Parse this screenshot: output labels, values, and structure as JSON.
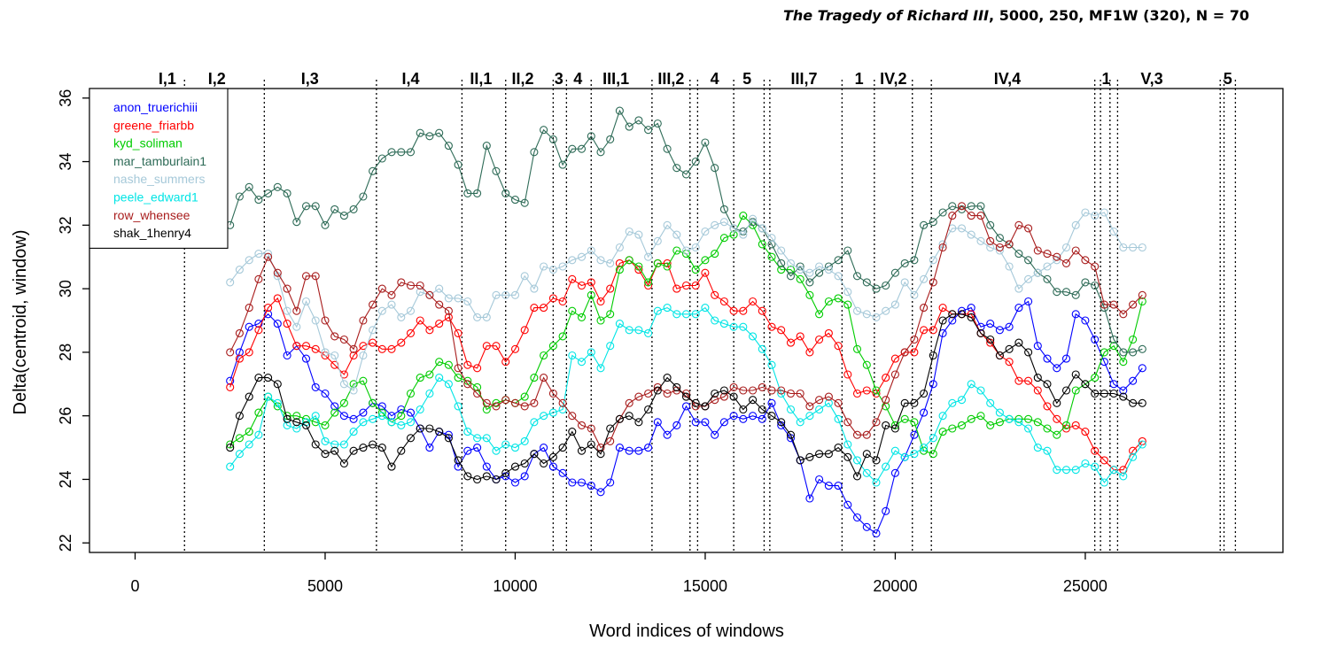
{
  "title": {
    "italic": "The Tragedy of Richard III",
    "rest": ", 5000, 250, MF1W (320), N = 70"
  },
  "chart_data": {
    "type": "line",
    "xlabel": "Word indices of windows",
    "ylabel": "Delta(centroid, window)",
    "xlim": [
      -1200,
      30200
    ],
    "ylim": [
      21.7,
      36.3
    ],
    "xticks": [
      0,
      5000,
      10000,
      15000,
      20000,
      25000
    ],
    "yticks": [
      22,
      24,
      26,
      28,
      30,
      32,
      34,
      36
    ],
    "legend_position": "top-left",
    "scene_boundaries": [
      1300,
      3400,
      6350,
      8600,
      9750,
      11000,
      11350,
      12000,
      13600,
      14600,
      14800,
      15750,
      16550,
      16700,
      18600,
      19450,
      20450,
      20950,
      25250,
      25400,
      25650,
      25850,
      28550,
      28650,
      28950
    ],
    "scene_labels": [
      {
        "text": "I,1",
        "x": 850
      },
      {
        "text": "I,2",
        "x": 2150
      },
      {
        "text": "I,3",
        "x": 4600
      },
      {
        "text": "I,4",
        "x": 7250
      },
      {
        "text": "II,1",
        "x": 9100
      },
      {
        "text": "II,2",
        "x": 10200
      },
      {
        "text": "3",
        "x": 11150
      },
      {
        "text": "4",
        "x": 11650
      },
      {
        "text": "III,1",
        "x": 12650
      },
      {
        "text": "III,2",
        "x": 14100
      },
      {
        "text": "4",
        "x": 15250
      },
      {
        "text": "5",
        "x": 16100
      },
      {
        "text": "III,7",
        "x": 17600
      },
      {
        "text": "1",
        "x": 19050
      },
      {
        "text": "IV,2",
        "x": 19950
      },
      {
        "text": "IV,4",
        "x": 22950
      },
      {
        "text": "1",
        "x": 25550
      },
      {
        "text": "V,3",
        "x": 26750
      },
      {
        "text": "5",
        "x": 28750
      }
    ],
    "x": [
      2500,
      2750,
      3000,
      3250,
      3500,
      3750,
      4000,
      4250,
      4500,
      4750,
      5000,
      5250,
      5500,
      5750,
      6000,
      6250,
      6500,
      6750,
      7000,
      7250,
      7500,
      7750,
      8000,
      8250,
      8500,
      8750,
      9000,
      9250,
      9500,
      9750,
      10000,
      10250,
      10500,
      10750,
      11000,
      11250,
      11500,
      11750,
      12000,
      12250,
      12500,
      12750,
      13000,
      13250,
      13500,
      13750,
      14000,
      14250,
      14500,
      14750,
      15000,
      15250,
      15500,
      15750,
      16000,
      16250,
      16500,
      16750,
      17000,
      17250,
      17500,
      17750,
      18000,
      18250,
      18500,
      18750,
      19000,
      19250,
      19500,
      19750,
      20000,
      20250,
      20500,
      20750,
      21000,
      21250,
      21500,
      21750,
      22000,
      22250,
      22500,
      22750,
      23000,
      23250,
      23500,
      23750,
      24000,
      24250,
      24500,
      24750,
      25000,
      25250,
      25500,
      25750,
      26000,
      26250,
      26500
    ],
    "series": [
      {
        "name": "anon_truerichiii",
        "color": "#0000ff",
        "values": [
          27.1,
          28.0,
          28.8,
          28.9,
          29.2,
          28.9,
          27.9,
          28.2,
          27.8,
          26.9,
          26.7,
          26.3,
          26.0,
          25.9,
          26.1,
          26.4,
          26.3,
          26.0,
          26.2,
          26.1,
          25.6,
          25.0,
          25.5,
          25.4,
          24.4,
          24.9,
          25.0,
          24.4,
          24.0,
          24.1,
          23.9,
          24.1,
          24.8,
          25.0,
          24.4,
          24.2,
          23.9,
          23.9,
          23.8,
          23.6,
          23.9,
          25.0,
          24.9,
          24.9,
          25.0,
          25.8,
          25.4,
          25.7,
          26.3,
          25.8,
          25.8,
          25.4,
          25.8,
          26.0,
          25.9,
          26.0,
          25.9,
          26.4,
          25.7,
          25.3,
          24.6,
          23.4,
          24.0,
          23.8,
          23.8,
          23.2,
          22.8,
          22.5,
          22.3,
          23.0,
          24.2,
          24.7,
          25.4,
          26.1,
          27.0,
          28.6,
          29.0,
          29.3,
          29.4,
          28.8,
          28.9,
          28.7,
          28.8,
          29.4,
          29.6,
          28.2,
          27.8,
          27.5,
          27.8,
          29.2,
          29.0,
          28.4,
          27.7,
          27.0,
          26.8,
          27.1,
          27.5
        ]
      },
      {
        "name": "greene_friarbb",
        "color": "#ff0000",
        "values": [
          26.9,
          27.8,
          28.0,
          28.7,
          29.4,
          29.7,
          28.9,
          28.2,
          28.2,
          28.1,
          27.9,
          27.6,
          27.3,
          27.9,
          28.2,
          28.3,
          28.1,
          28.1,
          28.3,
          28.6,
          29.0,
          28.7,
          28.9,
          29.1,
          28.6,
          27.6,
          27.5,
          28.2,
          28.2,
          27.7,
          28.1,
          28.7,
          29.4,
          29.4,
          29.7,
          29.6,
          30.3,
          30.1,
          30.2,
          29.6,
          30.0,
          30.8,
          30.9,
          30.6,
          30.1,
          30.8,
          30.8,
          30.0,
          30.1,
          30.1,
          30.5,
          29.8,
          29.6,
          29.3,
          29.3,
          29.6,
          29.3,
          28.8,
          28.7,
          28.3,
          28.5,
          28.0,
          28.4,
          28.6,
          28.2,
          27.3,
          26.7,
          26.8,
          26.7,
          27.2,
          27.8,
          28.0,
          28.0,
          28.7,
          28.7,
          29.4,
          29.2,
          29.2,
          29.2,
          28.6,
          28.3,
          27.9,
          27.7,
          27.1,
          27.1,
          26.8,
          26.3,
          25.9,
          25.6,
          25.7,
          25.5,
          24.9,
          24.6,
          24.3,
          24.3,
          24.9,
          25.2
        ]
      },
      {
        "name": "kyd_soliman",
        "color": "#00cc00",
        "values": [
          25.1,
          25.3,
          25.5,
          26.1,
          26.6,
          26.3,
          26.0,
          26.0,
          25.9,
          25.8,
          25.7,
          26.1,
          26.4,
          27.0,
          27.1,
          26.4,
          26.1,
          25.8,
          26.0,
          26.7,
          27.2,
          27.3,
          27.7,
          27.6,
          27.2,
          27.1,
          26.9,
          26.2,
          26.4,
          26.5,
          26.4,
          26.6,
          27.2,
          27.9,
          28.2,
          28.5,
          29.3,
          29.1,
          29.8,
          29.0,
          29.2,
          30.6,
          30.9,
          30.7,
          30.2,
          30.8,
          30.7,
          31.2,
          31.1,
          30.6,
          30.9,
          31.1,
          31.6,
          31.7,
          32.3,
          32.0,
          31.4,
          31.0,
          30.6,
          30.6,
          30.3,
          29.8,
          29.2,
          29.6,
          29.7,
          29.5,
          28.1,
          27.6,
          26.8,
          26.3,
          25.7,
          25.9,
          25.8,
          24.9,
          24.8,
          25.5,
          25.6,
          25.7,
          25.9,
          26.0,
          25.7,
          25.8,
          25.9,
          25.9,
          25.9,
          25.8,
          25.6,
          25.4,
          25.7,
          26.8,
          27.0,
          27.2,
          28.0,
          28.2,
          27.7,
          28.4,
          29.6
        ]
      },
      {
        "name": "mar_tamburlain1",
        "color": "#2e6b57",
        "values": [
          32.0,
          32.9,
          33.2,
          32.8,
          33.0,
          33.2,
          33.0,
          32.1,
          32.6,
          32.6,
          32.0,
          32.5,
          32.3,
          32.5,
          32.9,
          33.7,
          34.1,
          34.3,
          34.3,
          34.3,
          34.9,
          34.8,
          34.9,
          34.5,
          33.9,
          33.0,
          33.0,
          34.5,
          33.7,
          33.0,
          32.8,
          32.7,
          34.3,
          35.0,
          34.7,
          33.9,
          34.4,
          34.4,
          34.8,
          34.3,
          34.7,
          35.6,
          35.1,
          35.3,
          35.0,
          35.2,
          34.4,
          33.8,
          33.6,
          34.0,
          34.6,
          33.8,
          32.5,
          31.9,
          31.8,
          32.1,
          31.9,
          31.4,
          30.8,
          30.4,
          30.7,
          30.2,
          30.5,
          30.7,
          30.9,
          31.2,
          30.4,
          30.2,
          30.0,
          30.1,
          30.5,
          30.8,
          30.9,
          32.0,
          32.1,
          32.4,
          32.6,
          32.5,
          32.6,
          32.6,
          32.0,
          31.6,
          31.4,
          31.1,
          30.9,
          30.5,
          30.3,
          29.9,
          29.9,
          29.8,
          30.2,
          30.1,
          29.4,
          28.4,
          28.0,
          28.0,
          28.1
        ]
      },
      {
        "name": "nashe_summers",
        "color": "#a6c9d9",
        "values": [
          30.2,
          30.6,
          30.9,
          31.1,
          31.1,
          30.4,
          29.3,
          28.8,
          29.6,
          29.0,
          28.0,
          27.9,
          27.0,
          26.8,
          27.9,
          28.7,
          29.3,
          29.5,
          29.1,
          29.3,
          29.9,
          29.8,
          30.0,
          29.7,
          29.7,
          29.6,
          29.1,
          29.1,
          29.8,
          29.8,
          29.8,
          30.4,
          30.0,
          30.7,
          30.6,
          30.7,
          30.9,
          31.0,
          31.2,
          30.9,
          30.8,
          31.3,
          31.8,
          31.7,
          31.0,
          31.5,
          32.0,
          31.7,
          31.2,
          31.3,
          31.8,
          32.0,
          32.1,
          31.9,
          31.7,
          32.2,
          31.9,
          31.6,
          31.2,
          30.8,
          30.6,
          30.5,
          30.7,
          30.6,
          30.4,
          29.9,
          29.3,
          29.2,
          29.1,
          29.3,
          29.5,
          30.2,
          29.8,
          30.3,
          30.9,
          31.4,
          31.9,
          31.9,
          31.7,
          31.5,
          31.3,
          31.2,
          30.7,
          30.0,
          30.3,
          30.5,
          30.7,
          30.9,
          31.3,
          32.0,
          32.4,
          32.3,
          32.4,
          31.8,
          31.3,
          31.3,
          31.3
        ]
      },
      {
        "name": "peele_edward1",
        "color": "#00e5e5",
        "values": [
          24.4,
          24.8,
          25.1,
          25.4,
          26.6,
          26.4,
          25.7,
          25.6,
          25.8,
          26.0,
          25.2,
          25.1,
          25.1,
          25.5,
          25.8,
          25.9,
          26.0,
          25.8,
          25.7,
          25.8,
          26.2,
          26.7,
          27.2,
          27.0,
          26.3,
          25.5,
          25.3,
          25.3,
          24.9,
          25.1,
          25.0,
          25.2,
          25.8,
          26.0,
          26.1,
          26.2,
          27.9,
          27.7,
          28.0,
          27.5,
          28.2,
          28.9,
          28.7,
          28.7,
          28.6,
          29.3,
          29.4,
          29.2,
          29.2,
          29.2,
          29.4,
          29.0,
          28.9,
          28.8,
          28.8,
          28.5,
          28.1,
          27.6,
          26.7,
          26.2,
          25.8,
          26.0,
          26.2,
          26.4,
          25.9,
          25.1,
          24.6,
          24.2,
          23.9,
          24.4,
          24.9,
          24.7,
          24.8,
          25.0,
          25.3,
          26.0,
          26.4,
          26.5,
          27.0,
          26.8,
          26.4,
          26.1,
          25.9,
          25.8,
          25.6,
          25.0,
          24.9,
          24.3,
          24.3,
          24.3,
          24.5,
          24.4,
          23.9,
          24.3,
          24.1,
          24.7,
          25.1
        ]
      },
      {
        "name": "row_whensee",
        "color": "#a81c1c",
        "values": [
          28.0,
          28.6,
          29.4,
          30.3,
          31.0,
          30.5,
          30.0,
          29.3,
          30.4,
          30.4,
          29.0,
          28.5,
          28.4,
          28.1,
          29.0,
          29.5,
          30.0,
          29.8,
          30.2,
          30.1,
          30.1,
          29.8,
          29.5,
          29.3,
          27.5,
          27.0,
          26.7,
          26.4,
          26.3,
          26.5,
          26.4,
          26.3,
          26.4,
          27.2,
          26.7,
          26.4,
          26.0,
          25.7,
          25.6,
          25.0,
          25.2,
          25.9,
          26.4,
          26.6,
          26.7,
          26.9,
          26.7,
          26.8,
          26.7,
          26.3,
          26.3,
          26.5,
          26.6,
          26.9,
          26.8,
          26.8,
          26.9,
          26.8,
          26.8,
          26.7,
          26.7,
          26.3,
          26.5,
          26.6,
          26.4,
          25.8,
          25.4,
          25.4,
          25.8,
          26.5,
          27.3,
          28.0,
          28.4,
          29.4,
          30.2,
          31.3,
          32.3,
          32.6,
          32.3,
          32.3,
          31.5,
          31.3,
          31.4,
          32.0,
          31.9,
          31.2,
          31.1,
          31.0,
          30.8,
          31.2,
          30.9,
          30.7,
          29.5,
          29.5,
          29.2,
          29.5,
          29.8
        ]
      },
      {
        "name": "shak_1henry4",
        "color": "#000000",
        "values": [
          25.0,
          26.0,
          26.6,
          27.2,
          27.2,
          27.0,
          25.9,
          25.8,
          25.7,
          25.1,
          24.8,
          24.9,
          24.5,
          24.9,
          25.0,
          25.1,
          25.0,
          24.4,
          24.9,
          25.3,
          25.6,
          25.6,
          25.5,
          25.3,
          24.6,
          24.1,
          24.0,
          24.1,
          24.0,
          24.2,
          24.4,
          24.5,
          24.8,
          24.5,
          24.7,
          25.0,
          25.5,
          24.9,
          25.1,
          24.8,
          25.6,
          25.9,
          26.0,
          25.8,
          26.2,
          26.8,
          27.2,
          26.9,
          26.6,
          26.4,
          26.3,
          26.7,
          26.8,
          26.6,
          26.2,
          26.5,
          26.2,
          26.0,
          25.8,
          25.4,
          24.6,
          24.7,
          24.8,
          24.8,
          25.0,
          24.7,
          24.1,
          24.8,
          24.6,
          25.7,
          25.6,
          26.4,
          26.4,
          26.7,
          27.9,
          29.0,
          29.2,
          29.2,
          29.1,
          28.6,
          28.4,
          27.9,
          28.1,
          28.3,
          28.0,
          27.2,
          27.0,
          26.4,
          26.8,
          27.3,
          27.0,
          26.7,
          26.7,
          26.7,
          26.6,
          26.4,
          26.4
        ]
      }
    ]
  }
}
